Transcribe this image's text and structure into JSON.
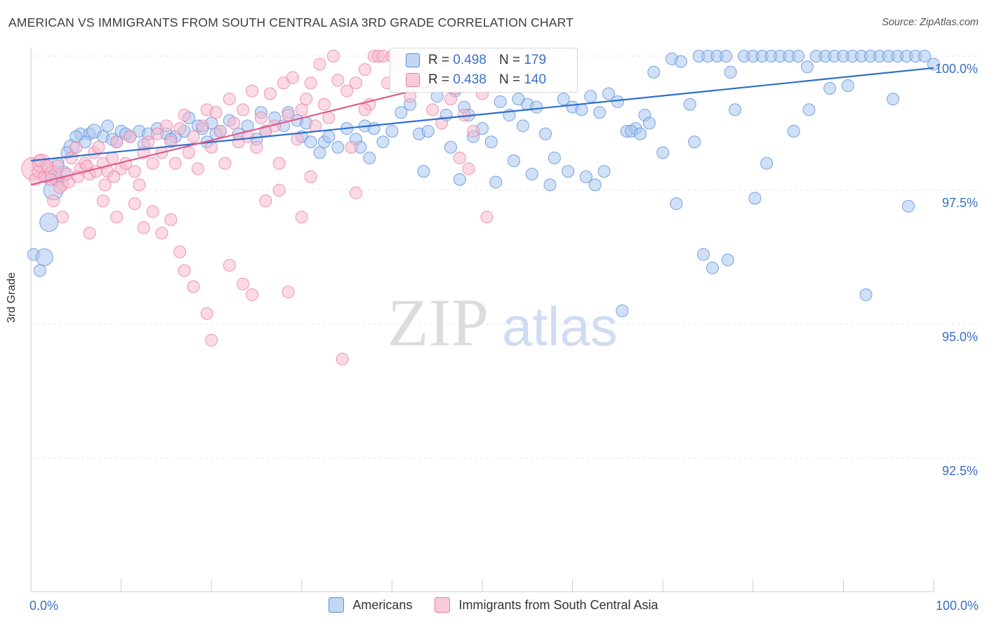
{
  "title": "AMERICAN VS IMMIGRANTS FROM SOUTH CENTRAL ASIA 3RD GRADE CORRELATION CHART",
  "source": "Source: ZipAtlas.com",
  "watermark": {
    "part1": "ZIP",
    "part2": "atlas"
  },
  "colors": {
    "blue_fill": "#a9c6f0",
    "blue_stroke": "#5b8ed8",
    "blue_line": "#2f6fcc",
    "pink_fill": "#f7bcd0",
    "pink_stroke": "#e87fa3",
    "pink_line": "#e05b8a",
    "tick_text": "#3a6fc4",
    "grid": "#e4e4e4"
  },
  "legend_top": [
    {
      "r_label": "R = ",
      "r_value": "0.498",
      "n_label": "N = ",
      "n_value": "179",
      "swatch": "blue"
    },
    {
      "r_label": "R = ",
      "r_value": "0.438",
      "n_label": "N = ",
      "n_value": "140",
      "swatch": "pink"
    }
  ],
  "chart_data": {
    "type": "scatter",
    "title": "AMERICAN VS IMMIGRANTS FROM SOUTH CENTRAL ASIA 3RD GRADE CORRELATION CHART",
    "xlabel": "",
    "ylabel": "3rd Grade",
    "xlim": [
      0,
      100
    ],
    "ylim": [
      90.0,
      100.2
    ],
    "x_tick_labels": [
      "0.0%",
      "100.0%"
    ],
    "y_ticks": [
      92.5,
      95.0,
      97.5,
      100.0
    ],
    "y_tick_labels": [
      "92.5%",
      "95.0%",
      "97.5%",
      "100.0%"
    ],
    "grid": true,
    "legend_position": "bottom",
    "series": [
      {
        "name": "Americans",
        "color": "blue",
        "r": 0.498,
        "n": 179,
        "trend": {
          "x0": 0,
          "y0": 98.05,
          "x1": 100,
          "y1": 99.78
        },
        "points": [
          [
            0.3,
            96.3
          ],
          [
            1,
            96
          ],
          [
            1.5,
            96.25
          ],
          [
            2,
            96.9
          ],
          [
            2.5,
            97.5
          ],
          [
            2.8,
            97.7
          ],
          [
            3.5,
            97.8
          ],
          [
            4.5,
            98.3
          ],
          [
            5.5,
            98.55
          ],
          [
            6.5,
            98.55
          ],
          [
            7,
            98.6
          ],
          [
            8,
            98.5
          ],
          [
            8.5,
            98.7
          ],
          [
            9.5,
            98.4
          ],
          [
            10,
            98.6
          ],
          [
            11,
            98.5
          ],
          [
            12,
            98.6
          ],
          [
            13,
            98.55
          ],
          [
            14,
            98.65
          ],
          [
            15,
            98.55
          ],
          [
            16,
            98.5
          ],
          [
            17,
            98.6
          ],
          [
            17.5,
            98.85
          ],
          [
            18.5,
            98.7
          ],
          [
            19.5,
            98.4
          ],
          [
            20,
            98.75
          ],
          [
            21,
            98.6
          ],
          [
            22,
            98.8
          ],
          [
            23,
            98.55
          ],
          [
            24,
            98.7
          ],
          [
            25,
            98.45
          ],
          [
            26,
            98.6
          ],
          [
            27,
            98.85
          ],
          [
            28,
            98.7
          ],
          [
            28.5,
            98.95
          ],
          [
            29.5,
            98.8
          ],
          [
            30,
            98.5
          ],
          [
            31,
            98.4
          ],
          [
            32,
            98.2
          ],
          [
            32.5,
            98.4
          ],
          [
            33,
            98.5
          ],
          [
            34,
            98.3
          ],
          [
            35,
            98.65
          ],
          [
            36,
            98.45
          ],
          [
            36.5,
            98.3
          ],
          [
            37,
            98.7
          ],
          [
            37.5,
            98.1
          ],
          [
            38,
            98.65
          ],
          [
            39,
            98.4
          ],
          [
            40,
            98.6
          ],
          [
            41,
            98.95
          ],
          [
            42,
            99.1
          ],
          [
            43,
            98.55
          ],
          [
            44,
            98.6
          ],
          [
            45,
            99.25
          ],
          [
            46,
            98.9
          ],
          [
            46.5,
            98.3
          ],
          [
            47,
            99.35
          ],
          [
            48,
            99.05
          ],
          [
            48.5,
            98.9
          ],
          [
            49,
            98.5
          ],
          [
            50,
            98.65
          ],
          [
            51,
            98.4
          ],
          [
            52,
            99.15
          ],
          [
            53,
            98.9
          ],
          [
            54,
            99.2
          ],
          [
            54.5,
            98.7
          ],
          [
            55,
            99.1
          ],
          [
            56,
            99.05
          ],
          [
            57,
            98.55
          ],
          [
            58,
            98.1
          ],
          [
            59,
            99.2
          ],
          [
            60,
            99.05
          ],
          [
            61,
            99.0
          ],
          [
            62,
            99.25
          ],
          [
            63,
            98.95
          ],
          [
            64,
            99.3
          ],
          [
            65,
            99.15
          ],
          [
            66,
            98.6
          ],
          [
            67,
            98.65
          ],
          [
            68,
            98.9
          ],
          [
            69,
            99.7
          ],
          [
            70,
            98.2
          ],
          [
            71,
            99.95
          ],
          [
            72,
            99.9
          ],
          [
            73,
            99.1
          ],
          [
            74,
            100.0
          ],
          [
            75,
            100.0
          ],
          [
            76,
            100.0
          ],
          [
            77,
            100.0
          ],
          [
            77.5,
            99.7
          ],
          [
            78,
            99.0
          ],
          [
            79,
            100.0
          ],
          [
            80,
            100.0
          ],
          [
            81,
            100.0
          ],
          [
            82,
            100.0
          ],
          [
            83,
            100.0
          ],
          [
            84,
            100.0
          ],
          [
            85,
            100.0
          ],
          [
            86,
            99.8
          ],
          [
            87,
            100.0
          ],
          [
            88,
            100.0
          ],
          [
            89,
            100.0
          ],
          [
            90,
            100.0
          ],
          [
            91,
            100.0
          ],
          [
            92,
            100.0
          ],
          [
            93,
            100.0
          ],
          [
            94,
            100.0
          ],
          [
            95,
            100.0
          ],
          [
            96,
            100.0
          ],
          [
            97,
            100.0
          ],
          [
            98,
            100.0
          ],
          [
            99,
            100.0
          ],
          [
            100,
            99.85
          ],
          [
            43.5,
            97.85
          ],
          [
            47.5,
            97.7
          ],
          [
            51.5,
            97.65
          ],
          [
            53.5,
            98.05
          ],
          [
            55.5,
            97.8
          ],
          [
            57.5,
            97.6
          ],
          [
            59.5,
            97.85
          ],
          [
            61.5,
            97.75
          ],
          [
            62.5,
            97.6
          ],
          [
            63.5,
            97.85
          ],
          [
            66.5,
            98.6
          ],
          [
            67.5,
            98.55
          ],
          [
            68.5,
            98.75
          ],
          [
            71.5,
            97.25
          ],
          [
            73.5,
            98.4
          ],
          [
            74.5,
            96.3
          ],
          [
            75.5,
            96.05
          ],
          [
            77.2,
            96.2
          ],
          [
            80.2,
            97.35
          ],
          [
            81.5,
            98.0
          ],
          [
            84.5,
            98.6
          ],
          [
            86.2,
            99.0
          ],
          [
            88.5,
            99.4
          ],
          [
            90.5,
            99.45
          ],
          [
            92.5,
            95.55
          ],
          [
            95.5,
            99.2
          ],
          [
            97.2,
            97.2
          ],
          [
            65.5,
            95.25
          ],
          [
            30.5,
            98.75
          ],
          [
            25.5,
            98.95
          ],
          [
            20.5,
            98.55
          ],
          [
            19,
            98.65
          ],
          [
            15.5,
            98.45
          ],
          [
            12.5,
            98.35
          ],
          [
            10.5,
            98.55
          ],
          [
            9,
            98.45
          ],
          [
            6,
            98.4
          ],
          [
            5,
            98.5
          ],
          [
            4,
            98.2
          ],
          [
            3,
            98.0
          ],
          [
            2.2,
            97.85
          ],
          [
            1.8,
            97.75
          ]
        ]
      },
      {
        "name": "Immigrants from South Central Asia",
        "color": "pink",
        "r": 0.438,
        "n": 140,
        "trend": {
          "x0": 0,
          "y0": 97.6,
          "x1": 47,
          "y1": 99.55
        },
        "points": [
          [
            0.2,
            97.9
          ],
          [
            0.5,
            97.7
          ],
          [
            0.8,
            97.85
          ],
          [
            1.2,
            98.0
          ],
          [
            1.5,
            97.75
          ],
          [
            2,
            97.9
          ],
          [
            2.5,
            97.8
          ],
          [
            3,
            97.95
          ],
          [
            3.5,
            97.6
          ],
          [
            4,
            97.8
          ],
          [
            4.5,
            98.1
          ],
          [
            5,
            98.3
          ],
          [
            5.5,
            97.9
          ],
          [
            6,
            98.0
          ],
          [
            6.5,
            97.8
          ],
          [
            7,
            98.2
          ],
          [
            7.5,
            98.3
          ],
          [
            8,
            98.0
          ],
          [
            8.5,
            97.85
          ],
          [
            9,
            98.1
          ],
          [
            9.5,
            98.4
          ],
          [
            10,
            97.9
          ],
          [
            10.5,
            98.0
          ],
          [
            11,
            98.5
          ],
          [
            11.5,
            97.85
          ],
          [
            12,
            97.6
          ],
          [
            12.5,
            98.2
          ],
          [
            13,
            98.4
          ],
          [
            13.5,
            98.0
          ],
          [
            14,
            98.55
          ],
          [
            14.5,
            98.2
          ],
          [
            15,
            98.7
          ],
          [
            15.5,
            98.4
          ],
          [
            16,
            98.0
          ],
          [
            16.5,
            98.65
          ],
          [
            17,
            98.9
          ],
          [
            17.5,
            98.2
          ],
          [
            18,
            98.5
          ],
          [
            18.5,
            97.9
          ],
          [
            19,
            98.7
          ],
          [
            19.5,
            99.0
          ],
          [
            20,
            98.3
          ],
          [
            20.5,
            98.95
          ],
          [
            21,
            98.6
          ],
          [
            21.5,
            98.0
          ],
          [
            22,
            99.2
          ],
          [
            22.5,
            98.75
          ],
          [
            23,
            98.4
          ],
          [
            23.5,
            99.0
          ],
          [
            24,
            98.5
          ],
          [
            24.5,
            99.35
          ],
          [
            25,
            98.3
          ],
          [
            25.5,
            98.85
          ],
          [
            26,
            98.6
          ],
          [
            26.5,
            99.3
          ],
          [
            27,
            98.7
          ],
          [
            27.5,
            98.0
          ],
          [
            28,
            99.5
          ],
          [
            28.5,
            98.9
          ],
          [
            29,
            99.6
          ],
          [
            29.5,
            98.45
          ],
          [
            30,
            99.0
          ],
          [
            30.5,
            99.2
          ],
          [
            31,
            99.5
          ],
          [
            31.5,
            98.7
          ],
          [
            32,
            99.85
          ],
          [
            32.5,
            99.1
          ],
          [
            33,
            98.85
          ],
          [
            33.5,
            100.0
          ],
          [
            34,
            99.55
          ],
          [
            35,
            99.35
          ],
          [
            35.5,
            98.3
          ],
          [
            36,
            99.5
          ],
          [
            37,
            99.75
          ],
          [
            37.5,
            99.1
          ],
          [
            38,
            100.0
          ],
          [
            38.5,
            100.0
          ],
          [
            39,
            100.0
          ],
          [
            39.5,
            99.5
          ],
          [
            40,
            100.0
          ],
          [
            41,
            100.0
          ],
          [
            42,
            99.25
          ],
          [
            43,
            99.85
          ],
          [
            44,
            99.45
          ],
          [
            44.5,
            99.0
          ],
          [
            45,
            100.0
          ],
          [
            46,
            99.9
          ],
          [
            46.5,
            99.2
          ],
          [
            47,
            99.4
          ],
          [
            48,
            98.9
          ],
          [
            49,
            98.6
          ],
          [
            50,
            99.3
          ],
          [
            50.5,
            97.0
          ],
          [
            2.5,
            97.3
          ],
          [
            3.5,
            97.0
          ],
          [
            6.5,
            96.7
          ],
          [
            8,
            97.3
          ],
          [
            9.5,
            97.0
          ],
          [
            11.5,
            97.25
          ],
          [
            12.5,
            96.8
          ],
          [
            13.5,
            97.1
          ],
          [
            14.5,
            96.7
          ],
          [
            15.5,
            96.95
          ],
          [
            16.5,
            96.35
          ],
          [
            17,
            96.0
          ],
          [
            18,
            95.7
          ],
          [
            19.5,
            95.2
          ],
          [
            20,
            94.7
          ],
          [
            22,
            96.1
          ],
          [
            23.5,
            95.75
          ],
          [
            24.5,
            95.55
          ],
          [
            26,
            97.3
          ],
          [
            27.5,
            97.5
          ],
          [
            28.5,
            95.6
          ],
          [
            30,
            97.0
          ],
          [
            31,
            97.75
          ],
          [
            34.5,
            94.35
          ],
          [
            36,
            97.45
          ],
          [
            37,
            99.0
          ],
          [
            40.5,
            99.8
          ],
          [
            42.5,
            99.95
          ],
          [
            45.5,
            98.75
          ],
          [
            47.5,
            98.1
          ],
          [
            48.5,
            97.9
          ],
          [
            1,
            98.05
          ],
          [
            1.8,
            97.95
          ],
          [
            2.2,
            97.7
          ],
          [
            3.2,
            97.55
          ],
          [
            4.2,
            97.65
          ],
          [
            5.2,
            97.75
          ],
          [
            6.2,
            97.95
          ],
          [
            7.2,
            97.85
          ],
          [
            8.2,
            97.6
          ],
          [
            9.2,
            97.75
          ]
        ]
      }
    ]
  }
}
